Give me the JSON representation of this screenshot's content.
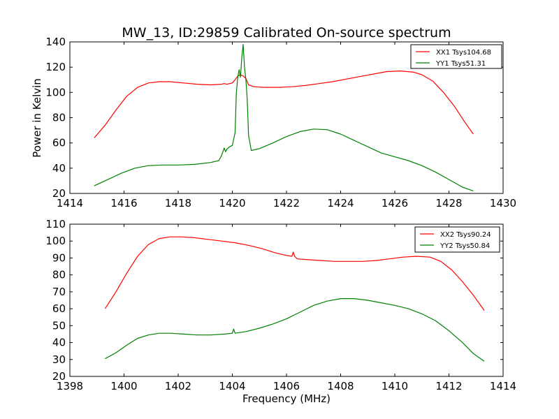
{
  "figure": {
    "title": "MW_13, ID:29859 Calibrated On-source spectrum",
    "ylabel": "Power in Kelvin",
    "xlabel": "Frequency (MHz)"
  },
  "chart_data": [
    {
      "type": "line",
      "title": "MW_13, ID:29859 Calibrated On-source spectrum",
      "ylabel": "Power in Kelvin",
      "xlabel": "",
      "xlim": [
        1414,
        1430
      ],
      "ylim": [
        20,
        140
      ],
      "xticks": [
        1414,
        1416,
        1418,
        1420,
        1422,
        1424,
        1426,
        1428,
        1430
      ],
      "yticks": [
        20,
        40,
        60,
        80,
        100,
        120,
        140
      ],
      "grid": false,
      "legend": "top-right",
      "series": [
        {
          "name": "XX1 Tsys104.68",
          "color": "#ff0000",
          "x": [
            1414.9,
            1415.3,
            1415.7,
            1416.1,
            1416.5,
            1416.9,
            1417.3,
            1417.7,
            1418.2,
            1418.7,
            1419.2,
            1419.6,
            1419.7,
            1419.8,
            1420.0,
            1420.1,
            1420.2,
            1420.3,
            1420.4,
            1420.5,
            1420.6,
            1420.8,
            1421.2,
            1421.7,
            1422.2,
            1422.7,
            1423.2,
            1423.7,
            1424.2,
            1424.7,
            1425.2,
            1425.7,
            1426.2,
            1426.7,
            1427.0,
            1427.4,
            1427.8,
            1428.2,
            1428.6,
            1428.9
          ],
          "y": [
            64,
            74,
            86,
            97,
            104,
            107.5,
            108.5,
            108.5,
            107.5,
            106.5,
            106,
            106.5,
            107,
            106.5,
            107.5,
            110,
            113,
            114,
            113,
            111,
            106,
            104.5,
            104,
            104,
            104.5,
            105.5,
            107,
            108.5,
            110.5,
            112.5,
            114.5,
            116.5,
            117,
            116,
            114,
            109,
            100,
            89,
            76,
            67
          ]
        },
        {
          "name": "YY1 Tsys51.31",
          "color": "#008000",
          "x": [
            1414.9,
            1415.4,
            1415.9,
            1416.4,
            1416.9,
            1417.4,
            1418.0,
            1418.6,
            1419.2,
            1419.5,
            1419.6,
            1419.7,
            1419.75,
            1419.8,
            1419.9,
            1420.0,
            1420.1,
            1420.15,
            1420.2,
            1420.25,
            1420.3,
            1420.35,
            1420.4,
            1420.45,
            1420.5,
            1420.55,
            1420.6,
            1420.7,
            1421.0,
            1421.5,
            1422.0,
            1422.5,
            1423.0,
            1423.5,
            1424.0,
            1424.5,
            1425.0,
            1425.5,
            1426.0,
            1426.5,
            1427.0,
            1427.5,
            1428.0,
            1428.5,
            1428.9
          ],
          "y": [
            26,
            31,
            36,
            40,
            42,
            42.5,
            42.5,
            43,
            44.5,
            46,
            50,
            56,
            53,
            55,
            57,
            58,
            68,
            100,
            112,
            118,
            112,
            128,
            138,
            120,
            110,
            95,
            66,
            54,
            55.5,
            60,
            65,
            69,
            71,
            70.5,
            67,
            62,
            57,
            52,
            49,
            46,
            42,
            37,
            31,
            25,
            22
          ]
        }
      ]
    },
    {
      "type": "line",
      "title": "",
      "ylabel": "",
      "xlabel": "Frequency (MHz)",
      "xlim": [
        1398,
        1414
      ],
      "ylim": [
        20,
        110
      ],
      "xticks": [
        1398,
        1400,
        1402,
        1404,
        1406,
        1408,
        1410,
        1412,
        1414
      ],
      "yticks": [
        20,
        30,
        40,
        50,
        60,
        70,
        80,
        90,
        100,
        110
      ],
      "grid": false,
      "legend": "top-right",
      "series": [
        {
          "name": "XX2 Tsys90.24",
          "color": "#ff0000",
          "x": [
            1399.3,
            1399.7,
            1400.1,
            1400.5,
            1400.9,
            1401.3,
            1401.7,
            1402.1,
            1402.6,
            1403.1,
            1403.6,
            1404.1,
            1404.6,
            1405.1,
            1405.6,
            1406.0,
            1406.2,
            1406.25,
            1406.3,
            1406.4,
            1406.8,
            1407.3,
            1407.8,
            1408.3,
            1408.8,
            1409.3,
            1409.8,
            1410.3,
            1410.8,
            1411.3,
            1411.7,
            1412.1,
            1412.5,
            1412.9,
            1413.3
          ],
          "y": [
            60,
            70,
            81,
            91,
            98,
            101.5,
            102.5,
            102.5,
            102,
            101,
            100,
            99,
            97.5,
            95.5,
            93,
            91.5,
            91,
            93.5,
            91,
            89.5,
            89,
            88.5,
            88,
            88,
            88,
            88.5,
            89.5,
            90.5,
            91,
            90.5,
            88,
            83,
            76,
            68,
            59
          ]
        },
        {
          "name": "YY2 Tsys50.84",
          "color": "#008000",
          "x": [
            1399.3,
            1399.7,
            1400.1,
            1400.5,
            1400.9,
            1401.3,
            1401.7,
            1402.2,
            1402.7,
            1403.2,
            1403.7,
            1404.0,
            1404.05,
            1404.1,
            1404.5,
            1405.0,
            1405.5,
            1406.0,
            1406.5,
            1407.0,
            1407.5,
            1408.0,
            1408.5,
            1409.0,
            1409.5,
            1410.0,
            1410.5,
            1411.0,
            1411.5,
            1412.0,
            1412.5,
            1412.9,
            1413.3
          ],
          "y": [
            30.5,
            34,
            38.5,
            42.5,
            44.5,
            45.5,
            45.5,
            45,
            44.5,
            44.5,
            45,
            45.5,
            48,
            45.5,
            46.5,
            48.5,
            51,
            54,
            58,
            62,
            64.5,
            66,
            66,
            65,
            63.5,
            62,
            60,
            57,
            53,
            47,
            40,
            33.5,
            29
          ]
        }
      ]
    }
  ]
}
